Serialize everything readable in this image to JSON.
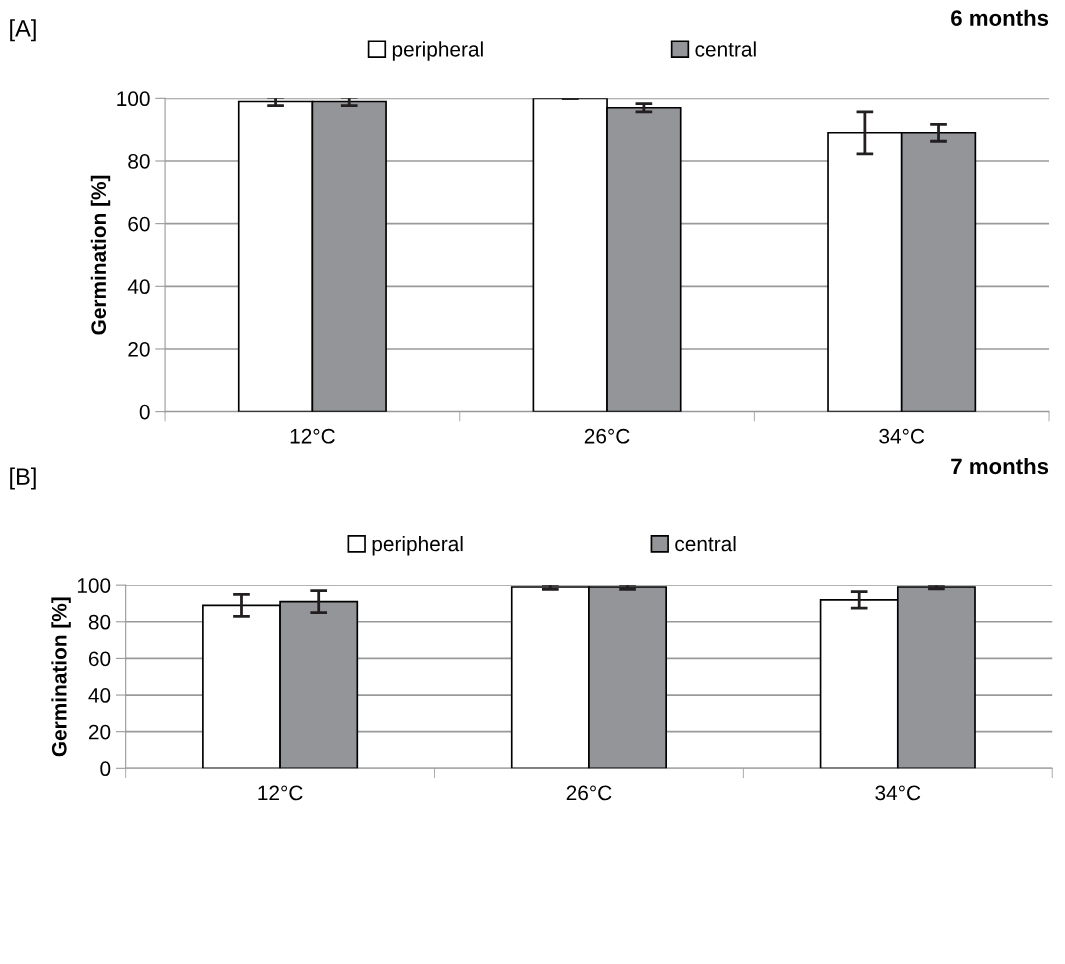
{
  "chart_data": [
    {
      "type": "bar",
      "title": "6 months",
      "annotations": [
        "[A]"
      ],
      "ylabel": "Germination [%]",
      "categories": [
        "12°C",
        "26°C",
        "34°C"
      ],
      "series": [
        {
          "name": "peripheral",
          "color": "#ffffff",
          "values": [
            99,
            100,
            89
          ],
          "errors": [
            1.3,
            0,
            6.7
          ]
        },
        {
          "name": "central",
          "color": "#939598",
          "values": [
            99,
            97,
            89
          ],
          "errors": [
            1.3,
            1.3,
            2.7
          ]
        }
      ],
      "ylim": [
        0,
        100
      ],
      "yticks": [
        0,
        20,
        40,
        60,
        80,
        100
      ],
      "grid": "y",
      "legend": "top"
    },
    {
      "type": "bar",
      "title": "7 months",
      "annotations": [
        "[B]"
      ],
      "ylabel": "Germination [%]",
      "categories": [
        "12°C",
        "26°C",
        "34°C"
      ],
      "series": [
        {
          "name": "peripheral",
          "color": "#ffffff",
          "values": [
            89,
            99,
            92
          ],
          "errors": [
            6,
            1.3,
            4.5
          ]
        },
        {
          "name": "central",
          "color": "#939598",
          "values": [
            91,
            99,
            99
          ],
          "errors": [
            6,
            1.3,
            1
          ]
        }
      ],
      "ylim": [
        0,
        100
      ],
      "yticks": [
        0,
        20,
        40,
        60,
        80,
        100
      ],
      "grid": "y",
      "legend": "top"
    }
  ]
}
